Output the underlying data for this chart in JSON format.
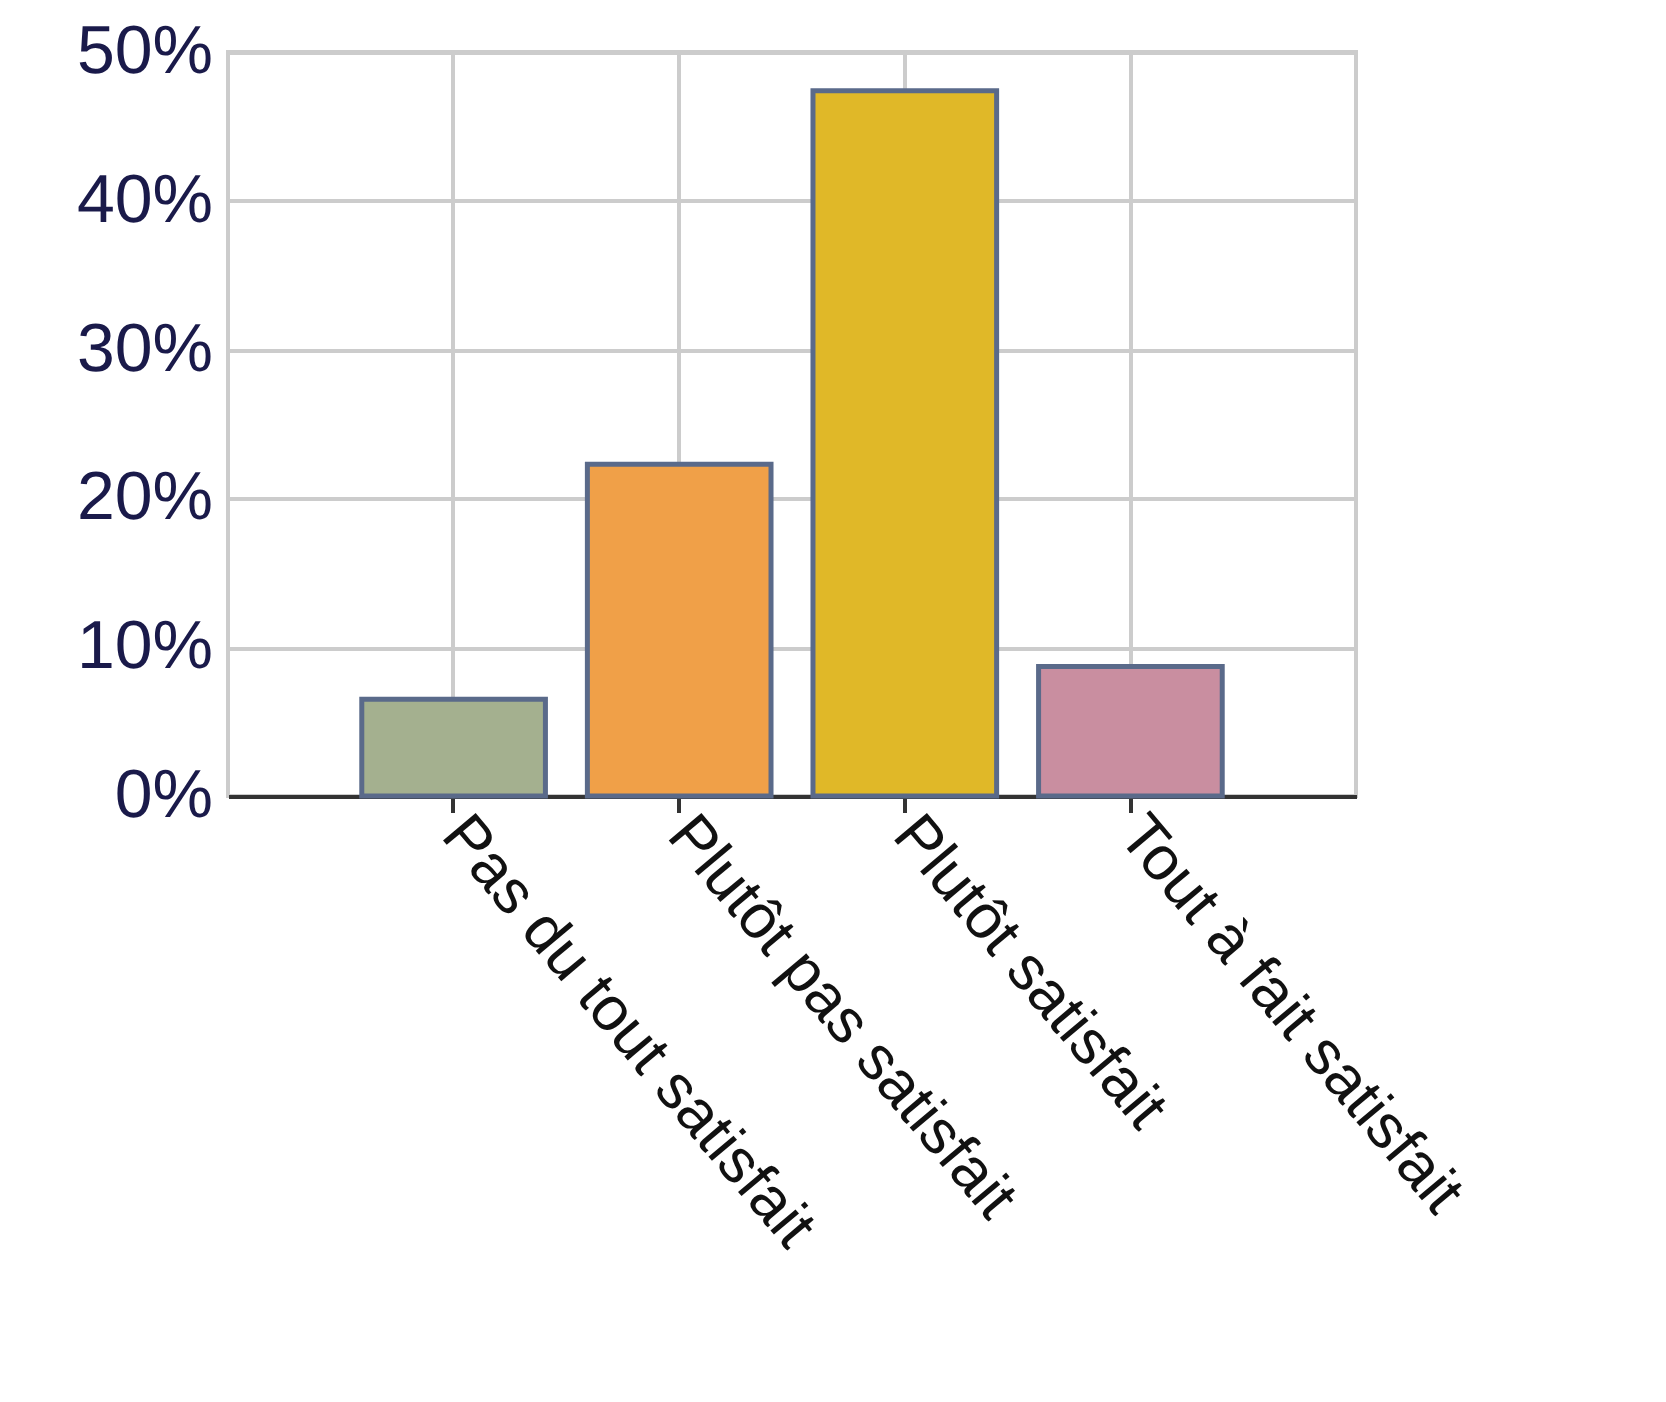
{
  "chart_data": {
    "type": "bar",
    "categories": [
      "Pas du tout satisfait",
      "Plutôt pas satisfait",
      "Plutôt satisfait",
      "Tout à fait satisfait"
    ],
    "values": [
      6.5,
      22.3,
      47.4,
      8.7
    ],
    "colors": [
      "#a4b08f",
      "#f0a048",
      "#e0b828",
      "#c98ea0"
    ],
    "ylim": [
      0,
      50
    ],
    "yticks": [
      {
        "value": 0,
        "label": "0%"
      },
      {
        "value": 10,
        "label": "10%"
      },
      {
        "value": 20,
        "label": "20%"
      },
      {
        "value": 30,
        "label": "30%"
      },
      {
        "value": 40,
        "label": "40%"
      },
      {
        "value": 50,
        "label": "50%"
      }
    ],
    "grid": true
  }
}
